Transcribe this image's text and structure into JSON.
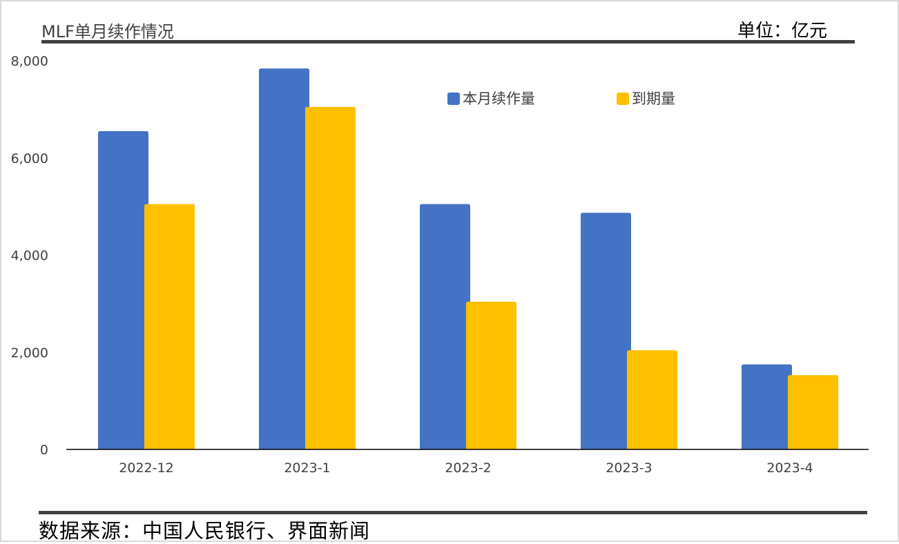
{
  "header": {
    "title": "MLF单月续作情况",
    "unit": "单位：亿元"
  },
  "footer": {
    "source": "数据来源：中国人民银行、界面新闻"
  },
  "colors": {
    "series_1": "#4472C4",
    "series_2": "#FFC000",
    "rule": "#404040",
    "axis": "#000000"
  },
  "chart_data": {
    "type": "bar",
    "categories": [
      "2022-12",
      "2023-1",
      "2023-2",
      "2023-3",
      "2023-4"
    ],
    "series": [
      {
        "name": "本月续作量",
        "values": [
          6550,
          7840,
          5050,
          4870,
          1750
        ]
      },
      {
        "name": "到期量",
        "values": [
          5050,
          7050,
          3040,
          2040,
          1530
        ]
      }
    ],
    "y_ticks": [
      "0",
      "2,000",
      "4,000",
      "6,000",
      "8,000"
    ],
    "ylim": [
      0,
      8000
    ],
    "grid": false,
    "legend_position": "top-right"
  }
}
